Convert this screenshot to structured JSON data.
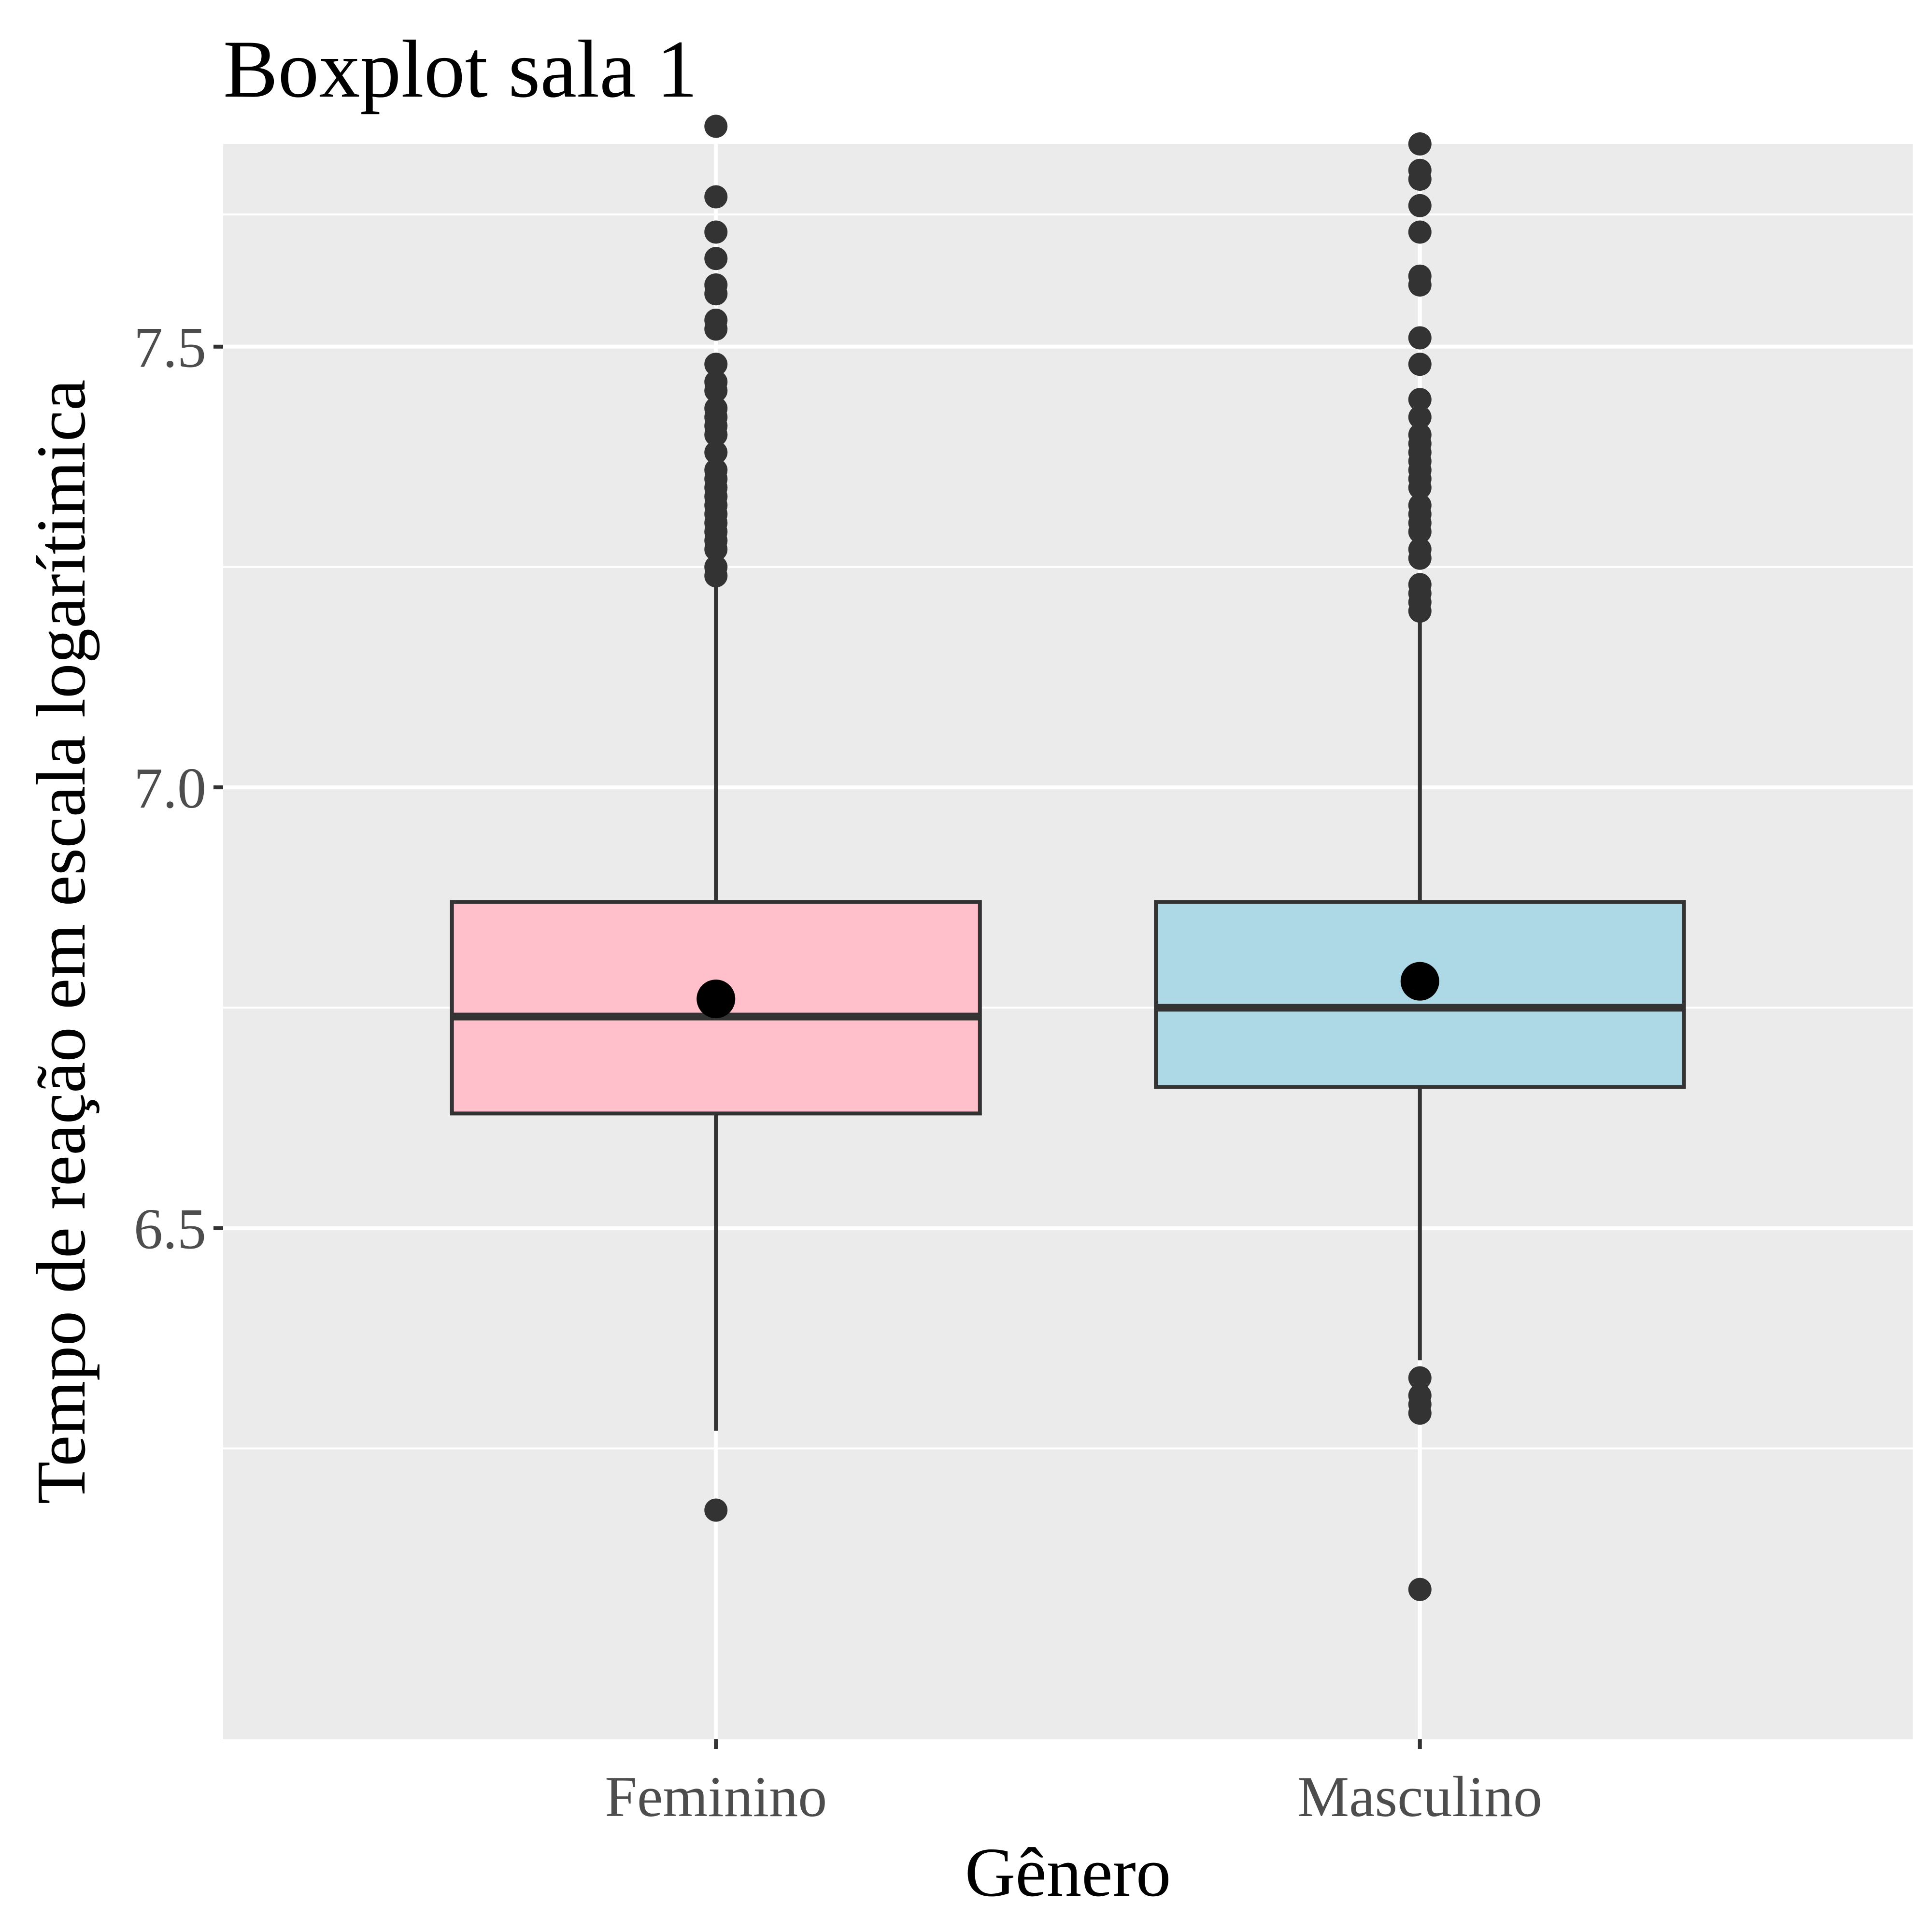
{
  "chart_data": {
    "type": "box",
    "title": "Boxplot sala 1",
    "xlabel": "Gênero",
    "ylabel": "Tempo de reação em escala logarítimica",
    "ylim": [
      5.92,
      7.73
    ],
    "yticks": [
      "6.5",
      "7.0",
      "7.5"
    ],
    "ytick_values": [
      6.5,
      7.0,
      7.5
    ],
    "y_minor_gridlines": [
      6.25,
      6.75,
      7.25,
      7.65
    ],
    "grid": true,
    "categories": [
      "Feminino",
      "Masculino"
    ],
    "groups": [
      {
        "name": "Feminino",
        "fill": "#FFC0CB",
        "q1": 6.63,
        "median": 6.74,
        "q3": 6.87,
        "whisker_low": 6.27,
        "whisker_high": 7.23,
        "mean": 6.76,
        "outliers": [
          6.18,
          7.24,
          7.25,
          7.27,
          7.28,
          7.29,
          7.3,
          7.31,
          7.32,
          7.33,
          7.34,
          7.35,
          7.36,
          7.38,
          7.4,
          7.41,
          7.42,
          7.43,
          7.45,
          7.46,
          7.48,
          7.52,
          7.53,
          7.56,
          7.57,
          7.6,
          7.63,
          7.67,
          7.75
        ]
      },
      {
        "name": "Masculino",
        "fill": "#ADD8E6",
        "q1": 6.66,
        "median": 6.75,
        "q3": 6.87,
        "whisker_low": 6.35,
        "whisker_high": 7.19,
        "mean": 6.78,
        "outliers": [
          6.09,
          6.29,
          6.3,
          6.31,
          6.33,
          7.2,
          7.21,
          7.22,
          7.23,
          7.26,
          7.27,
          7.29,
          7.3,
          7.31,
          7.32,
          7.34,
          7.35,
          7.36,
          7.37,
          7.38,
          7.39,
          7.4,
          7.42,
          7.44,
          7.48,
          7.51,
          7.57,
          7.58,
          7.63,
          7.66,
          7.69,
          7.7,
          7.73
        ]
      }
    ],
    "colors": {
      "panel_bg": "#EBEBEB",
      "grid": "#FFFFFF",
      "box_stroke": "#333333",
      "outlier": "#333333",
      "mean_point": "#000000",
      "tick_text": "#4D4D4D"
    }
  }
}
